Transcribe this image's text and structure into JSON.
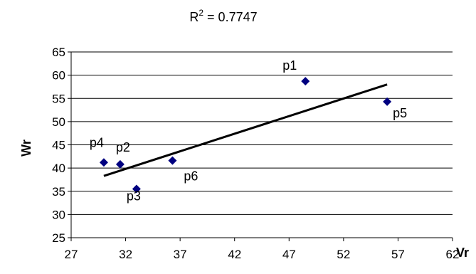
{
  "chart_data": {
    "type": "scatter",
    "title_base": "R",
    "title_sup": "2",
    "title_value": " = 0.7747",
    "xlabel": "Vr",
    "ylabel": "Wr",
    "xlim": [
      27,
      62
    ],
    "ylim": [
      25,
      65
    ],
    "xticks": [
      "27",
      "32",
      "37",
      "42",
      "47",
      "52",
      "57",
      "62"
    ],
    "yticks": [
      "25",
      "30",
      "35",
      "40",
      "45",
      "50",
      "55",
      "60",
      "65"
    ],
    "grid": "horizontal",
    "marker_color": "#000080",
    "trendline_color": "#000000",
    "points": [
      {
        "label": "p1",
        "x": 48.5,
        "y": 58.7
      },
      {
        "label": "p2",
        "x": 31.5,
        "y": 40.8
      },
      {
        "label": "p3",
        "x": 33.0,
        "y": 35.5
      },
      {
        "label": "p4",
        "x": 30.0,
        "y": 41.2
      },
      {
        "label": "p5",
        "x": 56.0,
        "y": 54.3
      },
      {
        "label": "p6",
        "x": 36.3,
        "y": 41.6
      }
    ],
    "trendline": {
      "x": [
        30.0,
        56.0
      ],
      "y": [
        38.3,
        58.0
      ]
    }
  }
}
